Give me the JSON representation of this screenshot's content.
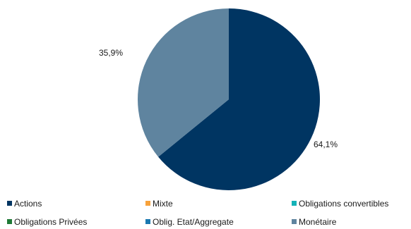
{
  "chart_data": {
    "type": "pie",
    "title": "",
    "legend_placement": "bottom",
    "slices": [
      {
        "label": "Actions",
        "value": 64.1,
        "value_label": "64,1%",
        "color": "#003562"
      },
      {
        "label": "Monétaire",
        "value": 35.9,
        "value_label": "35,9%",
        "color": "#5f849f"
      }
    ],
    "legend": [
      {
        "label": "Actions",
        "color": "#003562"
      },
      {
        "label": "Mixte",
        "color": "#f7a23b"
      },
      {
        "label": "Obligations convertibles",
        "color": "#14b3b8"
      },
      {
        "label": "Obligations Privées",
        "color": "#1f7a36"
      },
      {
        "label": "Oblig. Etat/Aggregate",
        "color": "#1a78b0"
      },
      {
        "label": "Monétaire",
        "color": "#5f849f"
      }
    ]
  }
}
